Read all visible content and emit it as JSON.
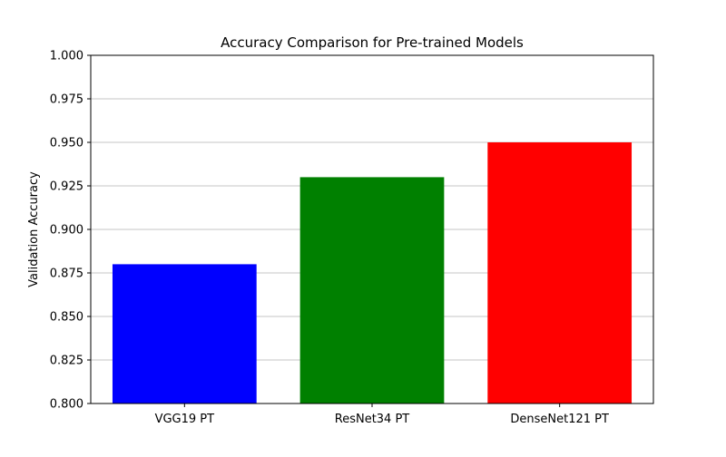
{
  "chart_data": {
    "type": "bar",
    "title": "Accuracy Comparison for Pre-trained Models",
    "xlabel": "",
    "ylabel": "Validation Accuracy",
    "categories": [
      "VGG19 PT",
      "ResNet34 PT",
      "DenseNet121 PT"
    ],
    "values": [
      0.88,
      0.93,
      0.95
    ],
    "colors": [
      "#0000ff",
      "#008000",
      "#ff0000"
    ],
    "ylim": [
      0.8,
      1.0
    ],
    "yticks": [
      "0.800",
      "0.825",
      "0.850",
      "0.875",
      "0.900",
      "0.925",
      "0.950",
      "0.975",
      "1.000"
    ],
    "grid": "y-axis",
    "legend": "none"
  }
}
